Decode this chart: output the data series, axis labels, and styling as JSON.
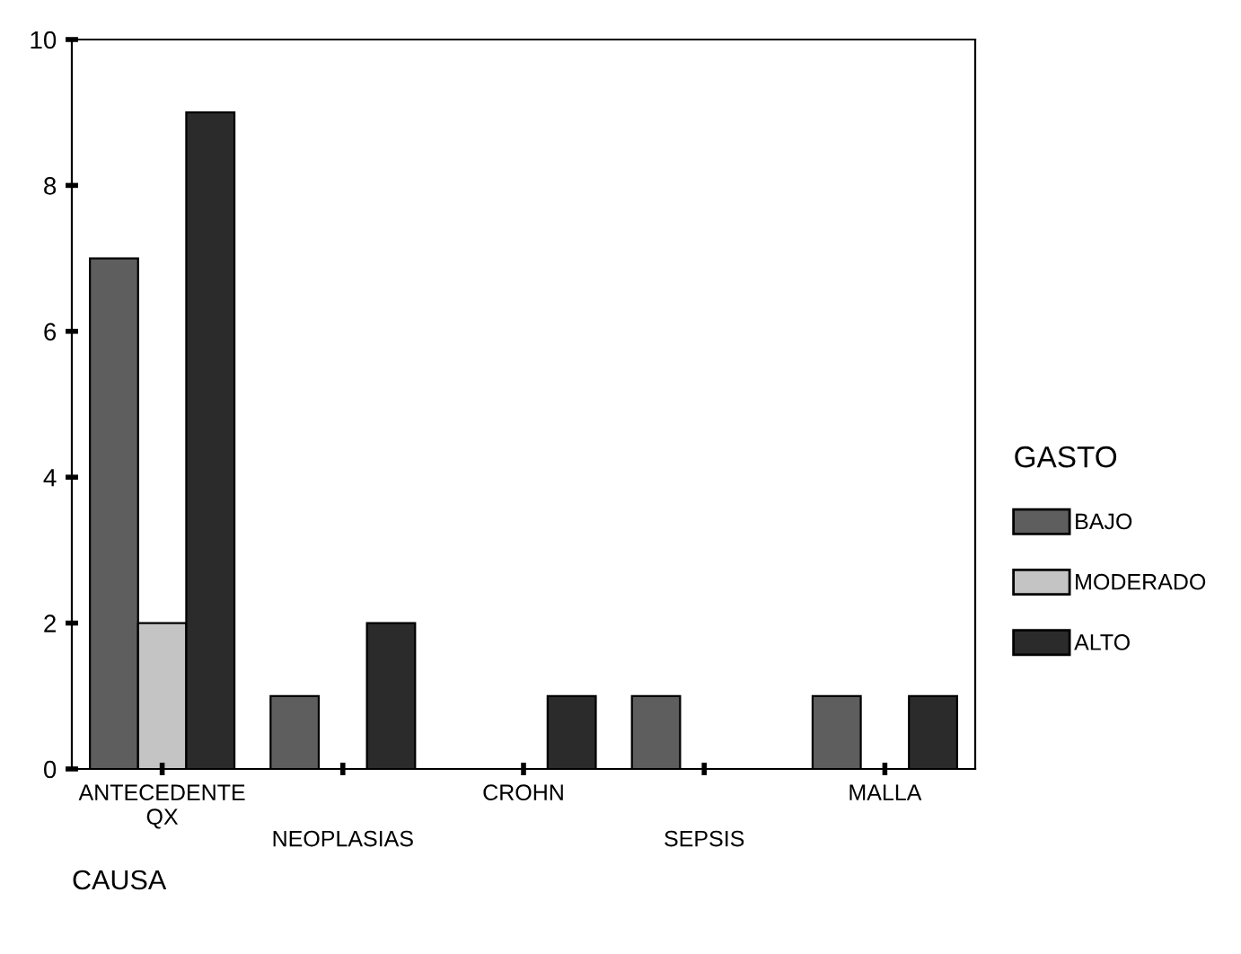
{
  "chart_data": {
    "type": "bar",
    "xlabel": "CAUSA",
    "legend_title": "GASTO",
    "categories": [
      "ANTECEDENTE\nQX",
      "NEOPLASIAS",
      "CROHN",
      "SEPSIS",
      "MALLA"
    ],
    "series": [
      {
        "name": "BAJO",
        "color": "#5e5e5e",
        "values": [
          7,
          1,
          0,
          1,
          1
        ]
      },
      {
        "name": "MODERADO",
        "color": "#c4c4c4",
        "values": [
          2,
          0,
          0,
          0,
          0
        ]
      },
      {
        "name": "ALTO",
        "color": "#2b2b2b",
        "values": [
          9,
          2,
          1,
          0,
          1
        ]
      }
    ],
    "ylim": [
      0,
      10
    ],
    "yticks": [
      0,
      2,
      4,
      6,
      8,
      10
    ],
    "grid": false,
    "legend": "right"
  }
}
